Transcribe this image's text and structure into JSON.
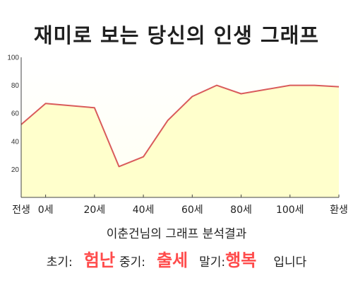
{
  "title": "재미로 보는 당신의 인생 그래프",
  "summary": "이춘건님의 그래프 분석결과",
  "result": {
    "early_label": "초기:",
    "early_value": "험난",
    "middle_label": "중기:",
    "middle_value": "출세",
    "late_label": "말기:",
    "late_value": "행복",
    "ending": "입니다"
  },
  "colors": {
    "line": "#d95b5b",
    "area": "#ffffcc",
    "accent": "#ff4b4b"
  },
  "chart_data": {
    "type": "area",
    "x": [
      -10,
      0,
      20,
      30,
      40,
      50,
      60,
      70,
      80,
      100,
      110,
      120
    ],
    "values": [
      52,
      67,
      64,
      22,
      29,
      55,
      72,
      80,
      74,
      80,
      80,
      79
    ],
    "xticks": [
      -10,
      0,
      20,
      40,
      60,
      80,
      100,
      120
    ],
    "xtick_labels": [
      "전생",
      "0세",
      "20세",
      "40세",
      "60세",
      "80세",
      "100세",
      "환생"
    ],
    "yticks": [
      20,
      40,
      60,
      80,
      100
    ],
    "xlim": [
      -10,
      120
    ],
    "ylim": [
      0,
      100
    ],
    "grid": false,
    "legend": "none"
  }
}
